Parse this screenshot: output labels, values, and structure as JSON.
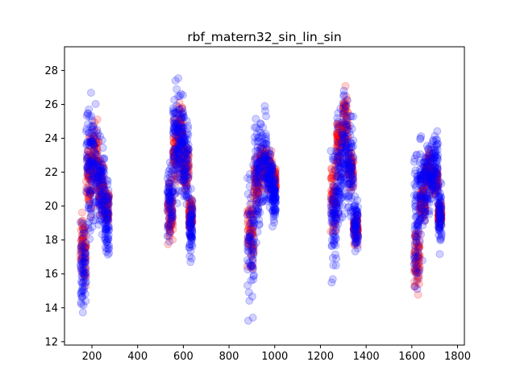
{
  "chart_data": {
    "type": "scatter",
    "title": "rbf_matern32_sin_lin_sin",
    "xlabel": "",
    "ylabel": "",
    "xlim": [
      80,
      1830
    ],
    "ylim": [
      11.8,
      29.4
    ],
    "xticks": [
      200,
      400,
      600,
      800,
      1000,
      1200,
      1400,
      1600,
      1800
    ],
    "yticks": [
      12,
      14,
      16,
      18,
      20,
      22,
      24,
      26,
      28
    ],
    "grid": false,
    "legend": "none",
    "marker_alpha": 0.18,
    "series": [
      {
        "color": "#ff0000",
        "clusters": [
          {
            "x": [
              [
                150,
                175,
                14.5,
                20.5
              ],
              [
                175,
                200,
                18.5,
                25.0
              ],
              [
                200,
                230,
                20.0,
                25.5
              ],
              [
                230,
                255,
                19.0,
                23.5
              ],
              [
                255,
                275,
                18.5,
                21.5
              ]
            ]
          },
          {
            "x": [
              [
                530,
                555,
                16.5,
                22.5
              ],
              [
                555,
                580,
                20.5,
                26.5
              ],
              [
                580,
                600,
                21.0,
                27.0
              ],
              [
                600,
                625,
                20.0,
                24.5
              ],
              [
                625,
                640,
                18.0,
                21.0
              ]
            ]
          },
          {
            "x": [
              [
                880,
                910,
                15.5,
                21.5
              ],
              [
                910,
                935,
                19.5,
                23.5
              ],
              [
                935,
                965,
                21.0,
                24.0
              ],
              [
                965,
                990,
                20.5,
                23.5
              ],
              [
                990,
                1005,
                20.5,
                22.5
              ]
            ]
          },
          {
            "x": [
              [
                1245,
                1270,
                17.5,
                23.5
              ],
              [
                1270,
                1295,
                21.0,
                26.0
              ],
              [
                1295,
                1320,
                22.5,
                27.5
              ],
              [
                1320,
                1345,
                20.5,
                24.0
              ],
              [
                1345,
                1365,
                17.5,
                20.0
              ]
            ]
          },
          {
            "x": [
              [
                1610,
                1635,
                14.3,
                19.5
              ],
              [
                1635,
                1660,
                18.5,
                22.0
              ],
              [
                1660,
                1690,
                20.5,
                23.5
              ],
              [
                1690,
                1715,
                20.5,
                22.5
              ],
              [
                1715,
                1730,
                18.5,
                20.5
              ]
            ]
          }
        ]
      },
      {
        "color": "#0000ff",
        "clusters": [
          {
            "x": [
              [
                150,
                175,
                13.0,
                20.0
              ],
              [
                175,
                200,
                16.5,
                27.3
              ],
              [
                200,
                230,
                18.0,
                26.5
              ],
              [
                230,
                255,
                17.0,
                25.0
              ],
              [
                255,
                275,
                16.0,
                22.0
              ]
            ]
          },
          {
            "x": [
              [
                530,
                555,
                17.0,
                24.0
              ],
              [
                555,
                580,
                18.5,
                28.6
              ],
              [
                580,
                600,
                20.0,
                28.0
              ],
              [
                600,
                625,
                19.0,
                26.0
              ],
              [
                625,
                640,
                16.2,
                21.5
              ]
            ]
          },
          {
            "x": [
              [
                880,
                910,
                12.5,
                23.5
              ],
              [
                910,
                935,
                16.5,
                26.5
              ],
              [
                935,
                965,
                19.0,
                26.8
              ],
              [
                965,
                990,
                19.5,
                24.0
              ],
              [
                990,
                1005,
                18.4,
                22.5
              ]
            ]
          },
          {
            "x": [
              [
                1245,
                1270,
                15.0,
                24.0
              ],
              [
                1270,
                1295,
                17.5,
                27.0
              ],
              [
                1295,
                1320,
                18.0,
                28.4
              ],
              [
                1320,
                1345,
                18.0,
                26.0
              ],
              [
                1345,
                1365,
                17.0,
                21.0
              ]
            ]
          },
          {
            "x": [
              [
                1610,
                1635,
                13.8,
                25.2
              ],
              [
                1635,
                1660,
                16.0,
                26.0
              ],
              [
                1660,
                1690,
                19.0,
                24.5
              ],
              [
                1690,
                1715,
                19.5,
                25.0
              ],
              [
                1715,
                1730,
                16.5,
                22.0
              ]
            ]
          }
        ]
      }
    ]
  }
}
